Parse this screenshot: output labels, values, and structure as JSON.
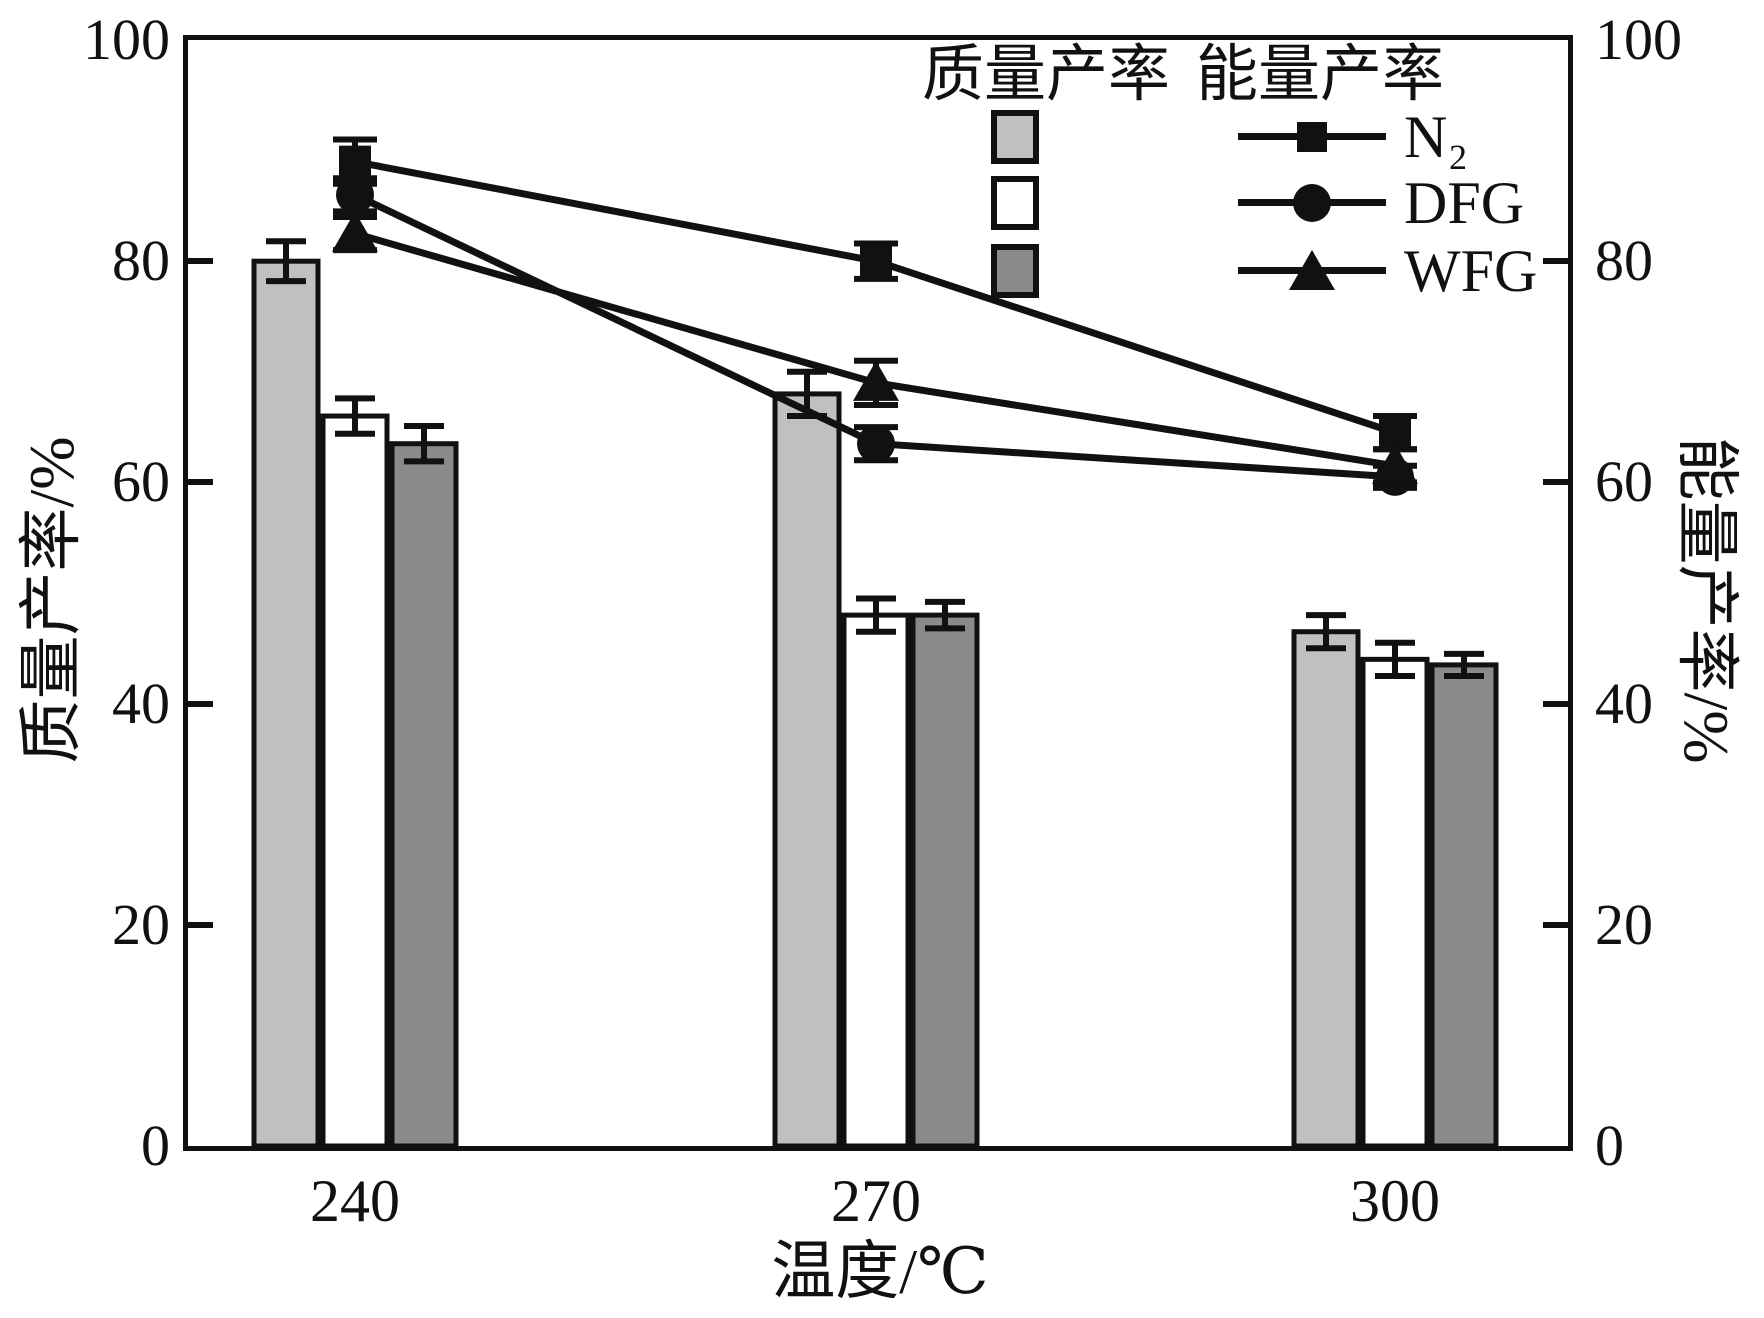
{
  "legend": {
    "headers": [
      "质量产率",
      "能量产率"
    ],
    "entries": [
      {
        "label": "N₂",
        "marker": "square",
        "swatch_color": "#c0c0c0"
      },
      {
        "label": "DFG",
        "marker": "circle",
        "swatch_color": "#ffffff"
      },
      {
        "label": "WFG",
        "marker": "triangle",
        "swatch_color": "#8a8a8a"
      }
    ]
  },
  "chart_data": {
    "type": "bar+line",
    "title": "",
    "xlabel": "温度/℃",
    "ylabel_left": "质量产率/%",
    "ylabel_right": "能量产率/%",
    "categories": [
      240,
      270,
      300
    ],
    "x_tick_labels": [
      "240",
      "270",
      "300"
    ],
    "y_tick_values": [
      0,
      20,
      40,
      60,
      80,
      100
    ],
    "y_tick_labels": [
      "0",
      "20",
      "40",
      "60",
      "80",
      "100"
    ],
    "ylim_left": [
      0,
      100
    ],
    "ylim_right": [
      0,
      100
    ],
    "grid": false,
    "legend_position": "top-right-inside",
    "legend_headers": [
      "质量产率",
      "能量产率"
    ],
    "bar_series": [
      {
        "name": "N₂",
        "axis": "left",
        "color": "#c0c0c0",
        "values": [
          80.0,
          68.0,
          46.5
        ],
        "errors": [
          1.8,
          2.0,
          1.5
        ]
      },
      {
        "name": "DFG",
        "axis": "left",
        "color": "#ffffff",
        "values": [
          66.0,
          48.0,
          44.0
        ],
        "errors": [
          1.6,
          1.5,
          1.5
        ]
      },
      {
        "name": "WFG",
        "axis": "left",
        "color": "#8a8a8a",
        "values": [
          63.5,
          48.0,
          43.5
        ],
        "errors": [
          1.6,
          1.2,
          1.0
        ]
      }
    ],
    "line_series": [
      {
        "name": "N₂",
        "axis": "right",
        "marker": "square",
        "color": "#111111",
        "values": [
          89.0,
          80.0,
          64.5
        ],
        "errors": [
          2.0,
          1.6,
          1.5
        ]
      },
      {
        "name": "DFG",
        "axis": "right",
        "marker": "circle",
        "color": "#111111",
        "values": [
          86.0,
          63.5,
          60.5
        ],
        "errors": [
          1.5,
          1.5,
          1.0
        ]
      },
      {
        "name": "WFG",
        "axis": "right",
        "marker": "triangle",
        "color": "#111111",
        "values": [
          82.5,
          69.0,
          61.5
        ],
        "errors": [
          1.5,
          2.0,
          1.5
        ]
      }
    ]
  }
}
